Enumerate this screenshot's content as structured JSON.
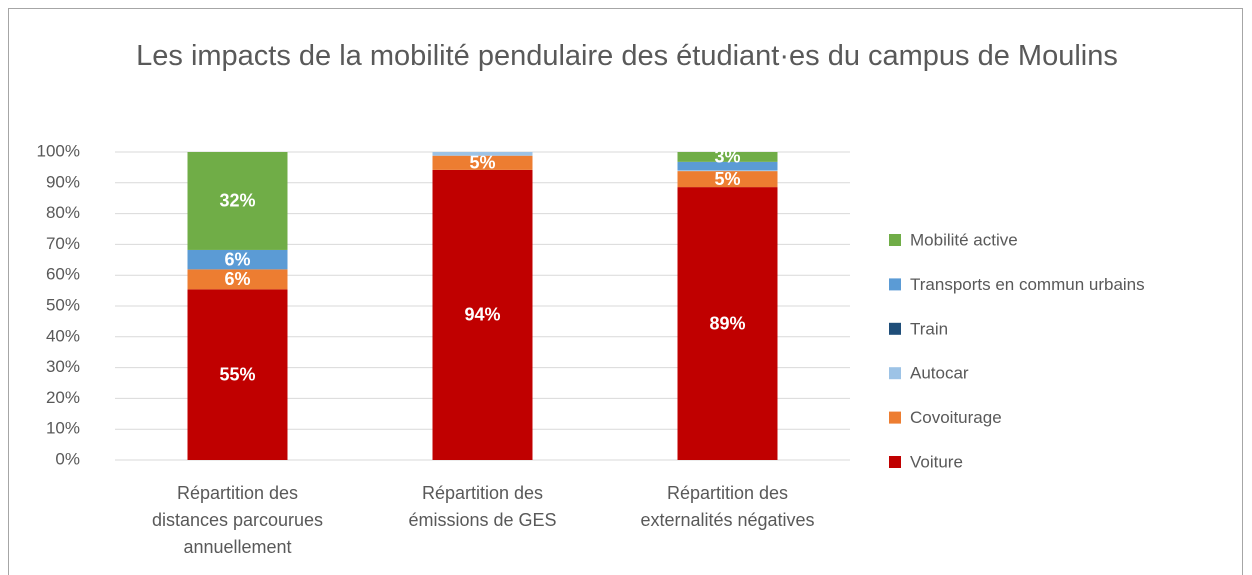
{
  "chart_data": {
    "type": "stacked_bar",
    "title": "Les impacts de la mobilité pendulaire des étudiant·es du campus de Moulins",
    "categories": [
      "Répartition des distances parcourues annuellement",
      "Répartition des émissions de GES",
      "Répartition des externalités négatives"
    ],
    "series": [
      {
        "name": "Voiture",
        "color": "#c00000",
        "values": [
          55.4,
          94.2,
          88.6
        ],
        "value_labels": [
          "55%",
          "94%",
          "89%"
        ]
      },
      {
        "name": "Covoiturage",
        "color": "#ed7d31",
        "values": [
          6.5,
          4.6,
          5.2
        ],
        "value_labels": [
          "6%",
          "5%",
          "5%"
        ]
      },
      {
        "name": "Autocar",
        "color": "#9dc3e6",
        "values": [
          0,
          1.2,
          0.3
        ],
        "value_labels": [
          null,
          null,
          null
        ]
      },
      {
        "name": "Train",
        "color": "#1f4e79",
        "values": [
          0,
          0,
          0
        ],
        "value_labels": [
          null,
          null,
          null
        ]
      },
      {
        "name": "Transports en commun urbains",
        "color": "#5b9bd5",
        "values": [
          6.3,
          0,
          2.7
        ],
        "value_labels": [
          "6%",
          null,
          null
        ]
      },
      {
        "name": "Mobilité active",
        "color": "#70ad47",
        "values": [
          31.8,
          0,
          3.2
        ],
        "value_labels": [
          "32%",
          null,
          "3%"
        ]
      }
    ],
    "ylim": [
      0,
      100
    ],
    "yticks": [
      {
        "value": 0,
        "label": "0%"
      },
      {
        "value": 10,
        "label": "10%"
      },
      {
        "value": 20,
        "label": "20%"
      },
      {
        "value": 30,
        "label": "30%"
      },
      {
        "value": 40,
        "label": "40%"
      },
      {
        "value": 50,
        "label": "50%"
      },
      {
        "value": 60,
        "label": "60%"
      },
      {
        "value": 70,
        "label": "70%"
      },
      {
        "value": 80,
        "label": "80%"
      },
      {
        "value": 90,
        "label": "90%"
      },
      {
        "value": 100,
        "label": "100%"
      }
    ],
    "grid": true,
    "legend": "right"
  }
}
